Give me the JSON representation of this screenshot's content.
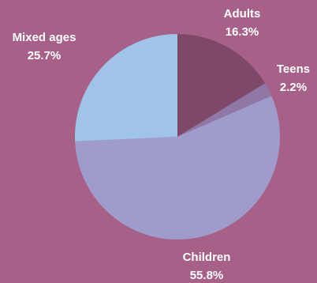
{
  "chart_data": {
    "type": "pie",
    "title": "",
    "background_color": "#a76188",
    "slices": [
      {
        "label": "Adults",
        "value": 16.3,
        "value_text": "16.3%",
        "color": "#7e4968"
      },
      {
        "label": "Teens",
        "value": 2.2,
        "value_text": "2.2%",
        "color": "#8f77a6"
      },
      {
        "label": "Children",
        "value": 55.8,
        "value_text": "55.8%",
        "color": "#9f9ccc"
      },
      {
        "label": "Mixed ages",
        "value": 25.7,
        "value_text": "25.7%",
        "color": "#a0c4e8"
      }
    ],
    "start_angle_deg": 0,
    "direction": "clockwise",
    "legend": "none"
  }
}
